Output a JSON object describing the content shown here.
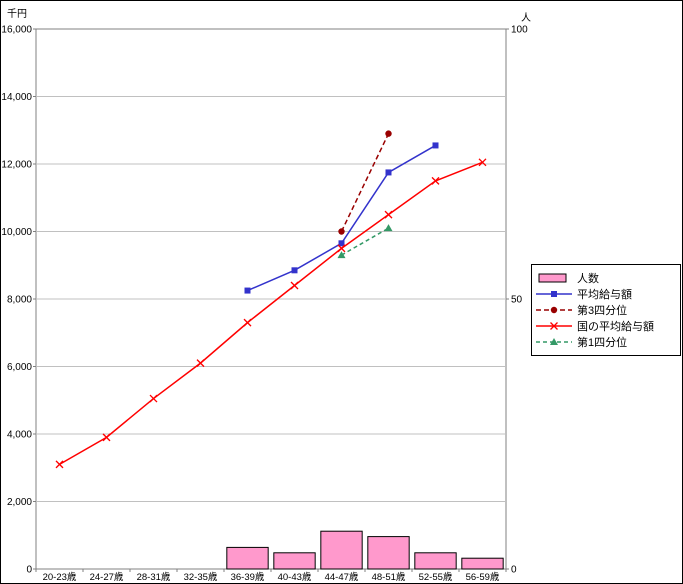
{
  "chart_data": {
    "type": "bar",
    "subtype": "combo-bar-line",
    "title": "",
    "categories": [
      "20-23歳",
      "24-27歳",
      "28-31歳",
      "32-35歳",
      "36-39歳",
      "40-43歳",
      "44-47歳",
      "48-51歳",
      "52-55歳",
      "56-59歳"
    ],
    "left_axis": {
      "label": "千円",
      "min": 0,
      "max": 16000,
      "step": 2000,
      "tick_labels": [
        "16,000",
        "14,000",
        "12,000",
        "10,000",
        "8,000",
        "6,000",
        "4,000",
        "2,000",
        "0"
      ]
    },
    "right_axis": {
      "label": "人",
      "min": 0,
      "max": 100,
      "ticks": [
        {
          "value": 100,
          "label": "100"
        },
        {
          "value": 50,
          "label": "50"
        },
        {
          "value": 0,
          "label": "0"
        }
      ]
    },
    "grid": true,
    "legend_position": "right",
    "colors": {
      "grid": "#C0C0C0",
      "plot_border": "#808080",
      "bar_fill": "#FF99CC",
      "avg_salary": "#3333CC",
      "third_quartile": "#990000",
      "national_avg": "#FF0000",
      "first_quartile": "#339966"
    },
    "series": [
      {
        "name": "人数",
        "type": "bar",
        "axis": "right",
        "color": "#FF99CC",
        "border_color": "#000000",
        "values": [
          null,
          null,
          null,
          null,
          4,
          3,
          7,
          6,
          3,
          2
        ]
      },
      {
        "name": "平均給与額",
        "type": "line",
        "axis": "left",
        "color": "#3333CC",
        "marker": "square",
        "dash": null,
        "values": [
          null,
          null,
          null,
          null,
          8250,
          8850,
          9650,
          11750,
          12550,
          null
        ]
      },
      {
        "name": "第3四分位",
        "type": "line",
        "axis": "left",
        "color": "#990000",
        "marker": "circle",
        "dash": "5,3",
        "values": [
          null,
          null,
          null,
          null,
          null,
          null,
          10000,
          12900,
          null,
          null
        ]
      },
      {
        "name": "国の平均給与額",
        "type": "line",
        "axis": "left",
        "color": "#FF0000",
        "marker": "x",
        "dash": null,
        "values": [
          3100,
          3900,
          5050,
          6100,
          7300,
          8400,
          9500,
          10500,
          11500,
          12050
        ]
      },
      {
        "name": "第1四分位",
        "type": "line",
        "axis": "left",
        "color": "#339966",
        "marker": "triangle",
        "dash": "4,3",
        "values": [
          null,
          null,
          null,
          null,
          null,
          null,
          9300,
          10100,
          null,
          null
        ]
      }
    ]
  }
}
